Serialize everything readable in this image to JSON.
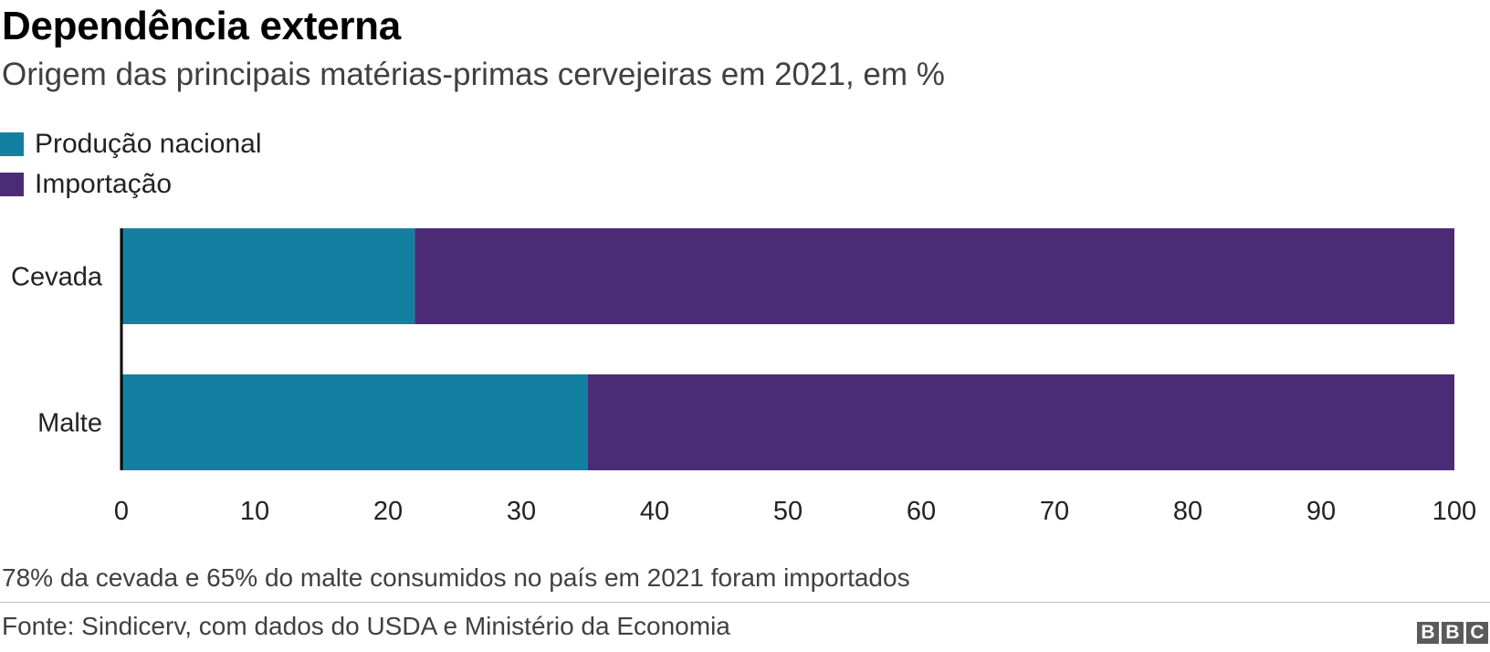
{
  "header": {
    "title": "Dependência externa",
    "subtitle": "Origem das principais matérias-primas cervejeiras em 2021, em %"
  },
  "legend": {
    "items": [
      {
        "label": "Produção nacional",
        "color": "#1380A1"
      },
      {
        "label": "Importação",
        "color": "#4B2C74"
      }
    ]
  },
  "chart_data": {
    "type": "bar",
    "orientation": "horizontal",
    "stacked": true,
    "categories": [
      "Cevada",
      "Malte"
    ],
    "series": [
      {
        "name": "Produção nacional",
        "values": [
          22,
          35
        ],
        "color": "#1380A1"
      },
      {
        "name": "Importação",
        "values": [
          78,
          65
        ],
        "color": "#4B2C74"
      }
    ],
    "xlim": [
      0,
      100
    ],
    "xticks": [
      0,
      10,
      20,
      30,
      40,
      50,
      60,
      70,
      80,
      90,
      100
    ],
    "grid": false,
    "legend_position": "top-left"
  },
  "footer": {
    "note": "78% da cevada e 65% do malte consumidos no país em 2021 foram importados",
    "source": "Fonte: Sindicerv, com dados do USDA e Ministério da Economia",
    "logo_letters": [
      "B",
      "B",
      "C"
    ]
  }
}
